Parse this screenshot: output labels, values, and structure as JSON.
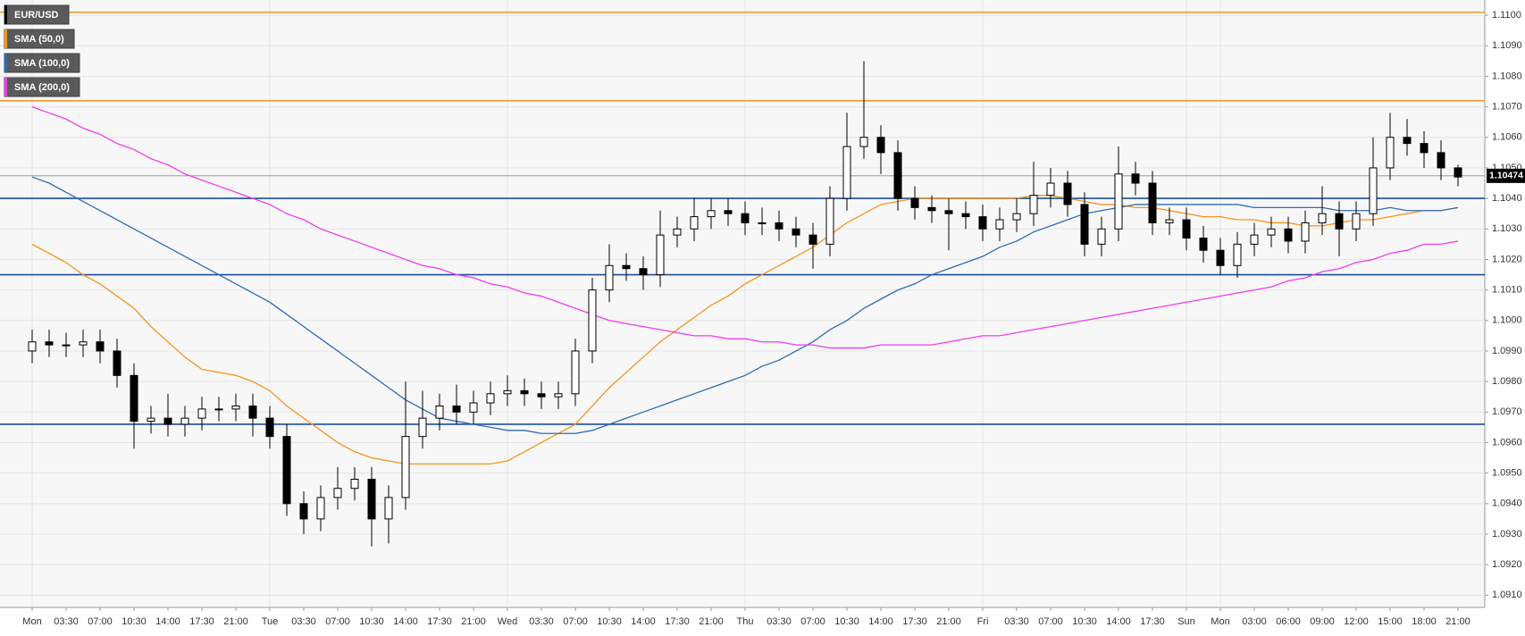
{
  "chart_data": {
    "type": "candlestick",
    "categories": [
      "Mon",
      null,
      "03:30",
      null,
      "07:00",
      null,
      "10:30",
      null,
      "14:00",
      null,
      "17:30",
      null,
      "21:00",
      null,
      "Tue",
      null,
      "03:30",
      null,
      "07:00",
      null,
      "10:30",
      null,
      "14:00",
      null,
      "17:30",
      null,
      "21:00",
      null,
      "Wed",
      null,
      "03:30",
      null,
      "07:00",
      null,
      "10:30",
      null,
      "14:00",
      null,
      "17:30",
      null,
      "21:00",
      null,
      "Thu",
      null,
      "03:30",
      null,
      "07:00",
      null,
      "10:30",
      null,
      "14:00",
      null,
      "17:30",
      null,
      "21:00",
      null,
      "Fri",
      null,
      "03:30",
      null,
      "07:00",
      null,
      "10:30",
      null,
      "14:00",
      null,
      "17:30",
      null,
      "Sun",
      null,
      "Mon",
      null,
      "03:00",
      null,
      "06:00",
      null,
      "09:00",
      null,
      "12:00",
      null,
      "15:00",
      null,
      "18:00",
      null,
      "21:00"
    ],
    "series": [
      {
        "name": "EUR/USD",
        "color": "#000000",
        "open": [
          1.099,
          1.0993,
          1.0992,
          1.0992,
          1.0993,
          1.099,
          1.0982,
          1.0967,
          1.0968,
          1.0966,
          1.0968,
          1.0971,
          1.0971,
          1.0972,
          1.0968,
          1.0962,
          1.094,
          1.0935,
          1.0942,
          1.0945,
          1.0948,
          1.0935,
          1.0942,
          1.0962,
          1.0968,
          1.0972,
          1.097,
          1.0973,
          1.0976,
          1.0977,
          1.0976,
          1.0975,
          1.0976,
          1.099,
          1.101,
          1.1018,
          1.1017,
          1.1015,
          1.1028,
          1.103,
          1.1034,
          1.1036,
          1.1035,
          1.1032,
          1.1032,
          1.103,
          1.1028,
          1.1025,
          1.104,
          1.1057,
          1.106,
          1.1055,
          1.104,
          1.1037,
          1.1036,
          1.1035,
          1.1034,
          1.103,
          1.1033,
          1.1035,
          1.1041,
          1.1045,
          1.1038,
          1.1025,
          1.103,
          1.1048,
          1.1045,
          1.1032,
          1.1033,
          1.1027,
          1.1023,
          1.1018,
          1.1025,
          1.1028,
          1.103,
          1.1026,
          1.1032,
          1.1035,
          1.103,
          1.1035,
          1.105,
          1.106,
          1.1058,
          1.1055,
          1.105
        ],
        "high": [
          1.0997,
          1.0997,
          1.0996,
          1.0997,
          1.0997,
          1.0994,
          1.0986,
          1.0972,
          1.0976,
          1.0972,
          1.0975,
          1.0975,
          1.0976,
          1.0976,
          1.0972,
          1.0966,
          1.0944,
          1.0946,
          1.0952,
          1.0952,
          1.0952,
          1.0946,
          1.098,
          1.0977,
          1.0976,
          1.0979,
          1.0977,
          1.098,
          1.0982,
          1.0981,
          1.098,
          1.098,
          1.0994,
          1.1014,
          1.1025,
          1.1022,
          1.1021,
          1.1036,
          1.1034,
          1.104,
          1.104,
          1.104,
          1.1039,
          1.1037,
          1.1036,
          1.1034,
          1.1032,
          1.1044,
          1.1068,
          1.1085,
          1.1064,
          1.1059,
          1.1044,
          1.1041,
          1.104,
          1.1039,
          1.1038,
          1.1037,
          1.104,
          1.1052,
          1.105,
          1.1049,
          1.1042,
          1.1034,
          1.1057,
          1.1052,
          1.1049,
          1.1037,
          1.1037,
          1.1031,
          1.1027,
          1.1029,
          1.1032,
          1.1034,
          1.1034,
          1.1036,
          1.1044,
          1.1039,
          1.1039,
          1.106,
          1.1068,
          1.1066,
          1.1062,
          1.1059,
          1.1051
        ],
        "low": [
          1.0986,
          1.0988,
          1.0988,
          1.0988,
          1.0986,
          1.0978,
          1.0958,
          1.0963,
          1.0962,
          1.0962,
          1.0964,
          1.0967,
          1.0967,
          1.0962,
          1.0958,
          1.0936,
          1.093,
          1.0931,
          1.0938,
          1.0941,
          1.0926,
          1.0927,
          1.0938,
          1.0958,
          1.0964,
          1.0966,
          1.0966,
          1.0969,
          1.0972,
          1.0972,
          1.0971,
          1.0971,
          1.0972,
          1.0986,
          1.1006,
          1.1013,
          1.101,
          1.1011,
          1.1024,
          1.1026,
          1.103,
          1.1031,
          1.1028,
          1.1028,
          1.1026,
          1.1024,
          1.1017,
          1.1021,
          1.1036,
          1.1053,
          1.1048,
          1.1036,
          1.1033,
          1.1032,
          1.1023,
          1.103,
          1.1026,
          1.1026,
          1.1029,
          1.1031,
          1.1037,
          1.1034,
          1.1021,
          1.1021,
          1.1026,
          1.1041,
          1.1028,
          1.1028,
          1.1023,
          1.1019,
          1.1015,
          1.1014,
          1.1021,
          1.1024,
          1.1022,
          1.1022,
          1.1028,
          1.1021,
          1.1026,
          1.1031,
          1.1046,
          1.1054,
          1.105,
          1.1046,
          1.1044
        ],
        "close": [
          1.0993,
          1.0992,
          1.0992,
          1.0993,
          1.099,
          1.0982,
          1.0967,
          1.0968,
          1.0966,
          1.0968,
          1.0971,
          1.0971,
          1.0972,
          1.0968,
          1.0962,
          1.094,
          1.0935,
          1.0942,
          1.0945,
          1.0948,
          1.0935,
          1.0942,
          1.0962,
          1.0968,
          1.0972,
          1.097,
          1.0973,
          1.0976,
          1.0977,
          1.0976,
          1.0975,
          1.0976,
          1.099,
          1.101,
          1.1018,
          1.1017,
          1.1015,
          1.1028,
          1.103,
          1.1034,
          1.1036,
          1.1035,
          1.1032,
          1.1032,
          1.103,
          1.1028,
          1.1025,
          1.104,
          1.1057,
          1.106,
          1.1055,
          1.104,
          1.1037,
          1.1036,
          1.1035,
          1.1034,
          1.103,
          1.1033,
          1.1035,
          1.1041,
          1.1045,
          1.1038,
          1.1025,
          1.103,
          1.1048,
          1.1045,
          1.1032,
          1.1033,
          1.1027,
          1.1023,
          1.1018,
          1.1025,
          1.1028,
          1.103,
          1.1026,
          1.1032,
          1.1035,
          1.103,
          1.1035,
          1.105,
          1.106,
          1.1058,
          1.1055,
          1.105,
          1.1047
        ]
      }
    ],
    "overlays": [
      {
        "name": "SMA (50,0)",
        "color": "#f7941d",
        "values": [
          1.1025,
          1.1022,
          1.1019,
          1.1015,
          1.1012,
          1.1008,
          1.1004,
          1.0998,
          1.0993,
          1.0988,
          1.0984,
          1.0983,
          1.0982,
          1.098,
          1.0977,
          1.0972,
          1.0968,
          1.0964,
          1.096,
          1.0957,
          1.0955,
          1.0954,
          1.0953,
          1.0953,
          1.0953,
          1.0953,
          1.0953,
          1.0953,
          1.0954,
          1.0957,
          1.096,
          1.0963,
          1.0966,
          1.0972,
          1.0978,
          1.0983,
          1.0988,
          1.0993,
          1.0997,
          1.1001,
          1.1005,
          1.1008,
          1.1012,
          1.1015,
          1.1018,
          1.1021,
          1.1024,
          1.1028,
          1.1032,
          1.1035,
          1.1038,
          1.1039,
          1.104,
          1.104,
          1.104,
          1.104,
          1.104,
          1.104,
          1.104,
          1.1041,
          1.1041,
          1.104,
          1.1039,
          1.1038,
          1.1038,
          1.1037,
          1.1037,
          1.1036,
          1.1035,
          1.1034,
          1.1034,
          1.1033,
          1.1033,
          1.1032,
          1.1032,
          1.1031,
          1.1031,
          1.1032,
          1.1033,
          1.1033,
          1.1034,
          1.1035,
          1.1036,
          1.1036,
          1.1037
        ]
      },
      {
        "name": "SMA (100,0)",
        "color": "#2e6bb5",
        "values": [
          1.1047,
          1.1045,
          1.1042,
          1.1039,
          1.1036,
          1.1033,
          1.103,
          1.1027,
          1.1024,
          1.1021,
          1.1018,
          1.1015,
          1.1012,
          1.1009,
          1.1006,
          1.1002,
          1.0998,
          1.0994,
          1.099,
          1.0986,
          1.0982,
          1.0978,
          1.0974,
          1.0971,
          1.0968,
          1.0967,
          1.0966,
          1.0965,
          1.0964,
          1.0964,
          1.0963,
          1.0963,
          1.0963,
          1.0964,
          1.0966,
          1.0968,
          1.097,
          1.0972,
          1.0974,
          1.0976,
          1.0978,
          1.098,
          1.0982,
          1.0985,
          1.0987,
          1.099,
          1.0993,
          1.0997,
          1.1,
          1.1004,
          1.1007,
          1.101,
          1.1012,
          1.1015,
          1.1017,
          1.1019,
          1.1021,
          1.1024,
          1.1026,
          1.1029,
          1.1031,
          1.1033,
          1.1035,
          1.1036,
          1.1037,
          1.1038,
          1.1038,
          1.1038,
          1.1038,
          1.1038,
          1.1038,
          1.1038,
          1.1037,
          1.1037,
          1.1037,
          1.1037,
          1.1037,
          1.1036,
          1.1036,
          1.1036,
          1.1037,
          1.1036,
          1.1036,
          1.1036,
          1.1037
        ]
      },
      {
        "name": "SMA (200,0)",
        "color": "#f03cf0",
        "values": [
          1.107,
          1.1068,
          1.1066,
          1.1063,
          1.1061,
          1.1058,
          1.1056,
          1.1053,
          1.1051,
          1.1048,
          1.1046,
          1.1044,
          1.1042,
          1.104,
          1.1038,
          1.1035,
          1.1033,
          1.103,
          1.1028,
          1.1026,
          1.1024,
          1.1022,
          1.102,
          1.1018,
          1.1017,
          1.1015,
          1.1014,
          1.1012,
          1.1011,
          1.1009,
          1.1008,
          1.1006,
          1.1004,
          1.1002,
          1.1,
          1.0999,
          1.0998,
          1.0997,
          1.0996,
          1.0995,
          1.0995,
          1.0994,
          1.0994,
          1.0993,
          1.0993,
          1.0992,
          1.0992,
          1.0991,
          1.0991,
          1.0991,
          1.0992,
          1.0992,
          1.0992,
          1.0992,
          1.0993,
          1.0994,
          1.0995,
          1.0995,
          1.0996,
          1.0997,
          1.0998,
          1.0999,
          1.1,
          1.1001,
          1.1002,
          1.1003,
          1.1004,
          1.1005,
          1.1006,
          1.1007,
          1.1008,
          1.1009,
          1.101,
          1.1011,
          1.1013,
          1.1014,
          1.1016,
          1.1017,
          1.1019,
          1.102,
          1.1022,
          1.1023,
          1.1025,
          1.1025,
          1.1026
        ]
      }
    ],
    "levels": [
      {
        "value": 1.1101,
        "color": "#f39a2e"
      },
      {
        "value": 1.1072,
        "color": "#f39a2e"
      },
      {
        "value": 1.104,
        "color": "#1c4f9c"
      },
      {
        "value": 1.1015,
        "color": "#1c4f9c"
      },
      {
        "value": 1.0966,
        "color": "#1c4f9c"
      }
    ],
    "last_price": 1.10474,
    "ylim": [
      1.0906,
      1.1105
    ],
    "yticks": [
      {
        "value": 1.091,
        "label": "1.0910"
      },
      {
        "value": 1.092,
        "label": "1.0920"
      },
      {
        "value": 1.093,
        "label": "1.0930"
      },
      {
        "value": 1.094,
        "label": "1.0940"
      },
      {
        "value": 1.095,
        "label": "1.0950"
      },
      {
        "value": 1.096,
        "label": "1.0960"
      },
      {
        "value": 1.097,
        "label": "1.0970"
      },
      {
        "value": 1.098,
        "label": "1.0980"
      },
      {
        "value": 1.099,
        "label": "1.0990"
      },
      {
        "value": 1.1,
        "label": "1.1000"
      },
      {
        "value": 1.101,
        "label": "1.1010"
      },
      {
        "value": 1.102,
        "label": "1.1020"
      },
      {
        "value": 1.103,
        "label": "1.1030"
      },
      {
        "value": 1.104,
        "label": "1.1040"
      },
      {
        "value": 1.105,
        "label": "1.1050"
      },
      {
        "value": 1.106,
        "label": "1.1060"
      },
      {
        "value": 1.107,
        "label": "1.1070"
      },
      {
        "value": 1.108,
        "label": "1.1080"
      },
      {
        "value": 1.109,
        "label": "1.1090"
      },
      {
        "value": 1.11,
        "label": "1.1100"
      }
    ],
    "grid": true
  }
}
